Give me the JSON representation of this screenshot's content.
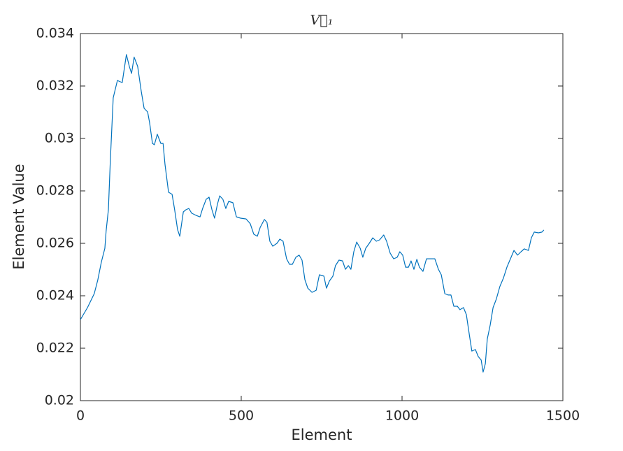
{
  "chart_data": {
    "type": "line",
    "title": "V⃗₁",
    "x_label": "Element",
    "y_label": "Element Value",
    "color": "#0072bd",
    "x": [
      0,
      22,
      43,
      54,
      65,
      76,
      80,
      87,
      93,
      102,
      115,
      130,
      143,
      152,
      159,
      167,
      178,
      189,
      198,
      209,
      215,
      224,
      230,
      239,
      250,
      257,
      263,
      274,
      285,
      293,
      302,
      309,
      320,
      328,
      337,
      346,
      359,
      372,
      380,
      391,
      400,
      409,
      417,
      426,
      433,
      443,
      452,
      461,
      474,
      485,
      498,
      515,
      528,
      539,
      550,
      559,
      572,
      580,
      589,
      598,
      611,
      620,
      630,
      641,
      650,
      659,
      670,
      680,
      689,
      698,
      707,
      720,
      733,
      743,
      757,
      765,
      774,
      785,
      793,
      804,
      815,
      824,
      833,
      841,
      850,
      859,
      870,
      878,
      887,
      898,
      909,
      920,
      930,
      943,
      952,
      963,
      974,
      985,
      993,
      1002,
      1011,
      1020,
      1028,
      1037,
      1046,
      1054,
      1065,
      1076,
      1089,
      1102,
      1113,
      1122,
      1133,
      1143,
      1152,
      1161,
      1172,
      1180,
      1191,
      1200,
      1209,
      1217,
      1228,
      1237,
      1246,
      1252,
      1259,
      1265,
      1274,
      1283,
      1293,
      1304,
      1315,
      1326,
      1337,
      1348,
      1359,
      1370,
      1380,
      1393,
      1402,
      1411,
      1424,
      1435,
      1441
    ],
    "values": [
      0.02309,
      0.02355,
      0.02408,
      0.0246,
      0.02528,
      0.02581,
      0.02648,
      0.02728,
      0.02915,
      0.03155,
      0.03221,
      0.03213,
      0.0332,
      0.03275,
      0.03248,
      0.0331,
      0.03275,
      0.03181,
      0.03115,
      0.03101,
      0.03061,
      0.02981,
      0.02976,
      0.03016,
      0.02981,
      0.02981,
      0.02901,
      0.02795,
      0.02787,
      0.02728,
      0.02653,
      0.02627,
      0.0272,
      0.02728,
      0.02733,
      0.02715,
      0.02707,
      0.02701,
      0.02733,
      0.02768,
      0.02776,
      0.02728,
      0.02696,
      0.02749,
      0.02781,
      0.02768,
      0.02733,
      0.0276,
      0.02755,
      0.02701,
      0.02696,
      0.02693,
      0.02675,
      0.02635,
      0.02627,
      0.02661,
      0.02691,
      0.0268,
      0.02608,
      0.02589,
      0.026,
      0.02616,
      0.02608,
      0.02541,
      0.0252,
      0.0252,
      0.02547,
      0.02555,
      0.02536,
      0.02461,
      0.02429,
      0.02413,
      0.02421,
      0.0248,
      0.02475,
      0.02429,
      0.02456,
      0.02475,
      0.02515,
      0.02536,
      0.02533,
      0.02501,
      0.02515,
      0.02501,
      0.02568,
      0.02605,
      0.02581,
      0.02547,
      0.02581,
      0.026,
      0.02621,
      0.02608,
      0.02613,
      0.02632,
      0.02608,
      0.02563,
      0.02541,
      0.02547,
      0.02568,
      0.02555,
      0.02509,
      0.02509,
      0.02533,
      0.02501,
      0.02539,
      0.02509,
      0.02493,
      0.02541,
      0.02541,
      0.02541,
      0.02501,
      0.0248,
      0.02408,
      0.02403,
      0.02403,
      0.0236,
      0.0236,
      0.02347,
      0.02355,
      0.02328,
      0.02253,
      0.02189,
      0.02195,
      0.02168,
      0.02155,
      0.02109,
      0.02141,
      0.02235,
      0.02288,
      0.02355,
      0.02387,
      0.02435,
      0.02467,
      0.02509,
      0.02541,
      0.02573,
      0.02555,
      0.02568,
      0.02579,
      0.02573,
      0.02621,
      0.02643,
      0.0264,
      0.02643,
      0.02651
    ],
    "xlim": [
      0,
      1500
    ],
    "xticks": [
      0,
      500,
      1000,
      1500
    ],
    "ylim": [
      0.02,
      0.034
    ],
    "yticks": [
      0.02,
      0.022,
      0.024,
      0.026,
      0.028,
      0.03,
      0.032,
      0.034
    ]
  }
}
